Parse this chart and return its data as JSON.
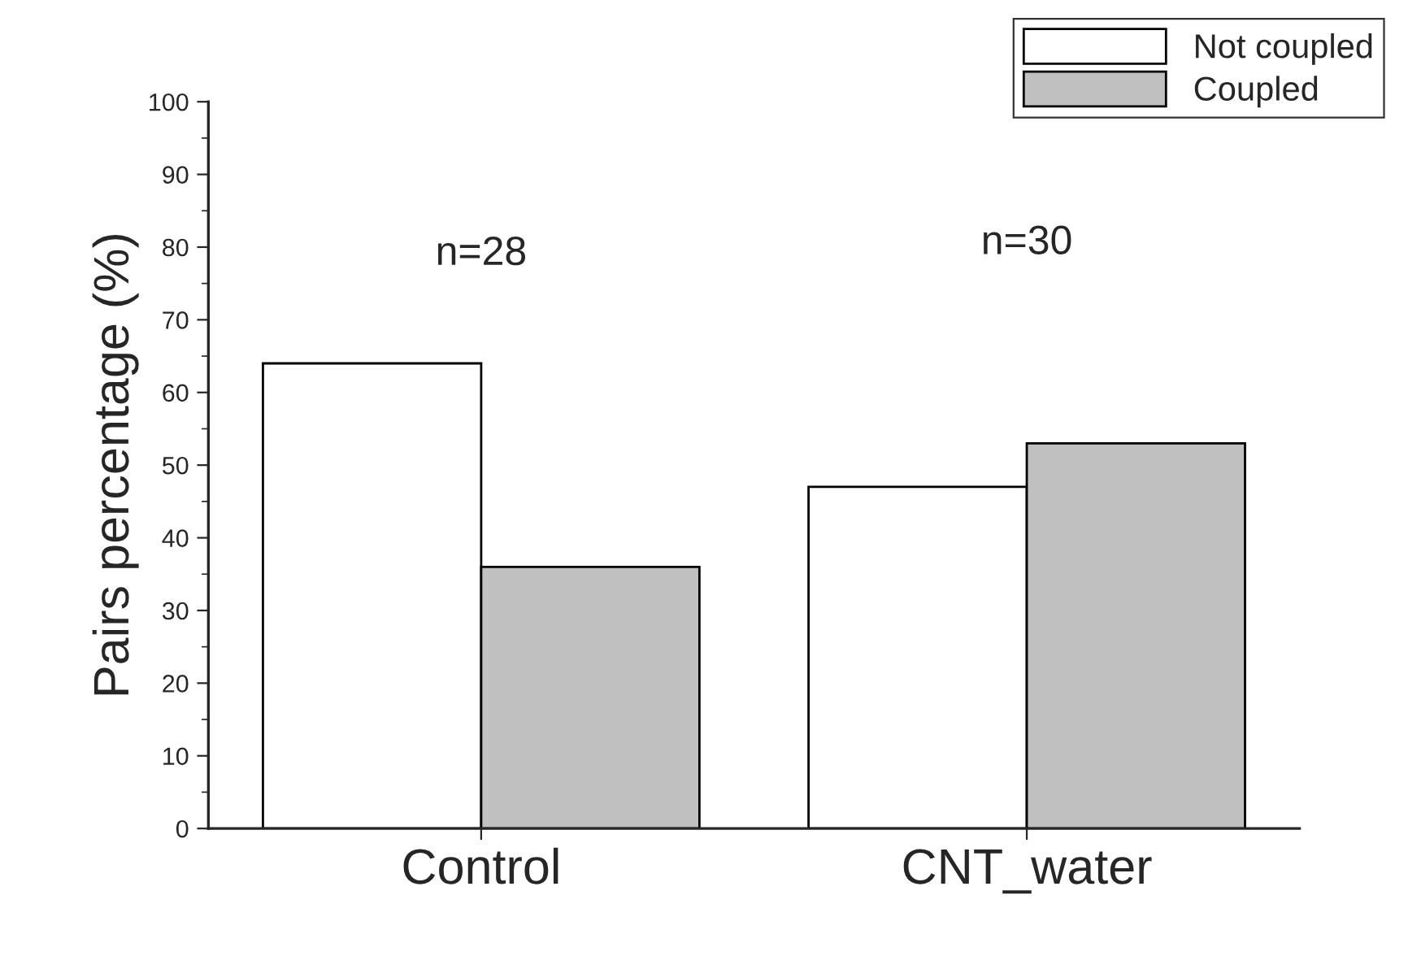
{
  "chart_data": {
    "type": "bar",
    "ylabel": "Pairs percentage (%)",
    "categories": [
      "Control",
      "CNT_water"
    ],
    "series": [
      {
        "name": "Not coupled",
        "color": "#ffffff",
        "values": [
          64,
          47
        ]
      },
      {
        "name": "Coupled",
        "color": "#c0c0c0",
        "values": [
          36,
          53
        ]
      }
    ],
    "ylim": [
      0,
      100
    ],
    "yticks": [
      0,
      10,
      20,
      30,
      40,
      50,
      60,
      70,
      80,
      90,
      100
    ],
    "annotations": [
      "n=28",
      "n=30"
    ],
    "grid": false,
    "legend": "top right"
  }
}
